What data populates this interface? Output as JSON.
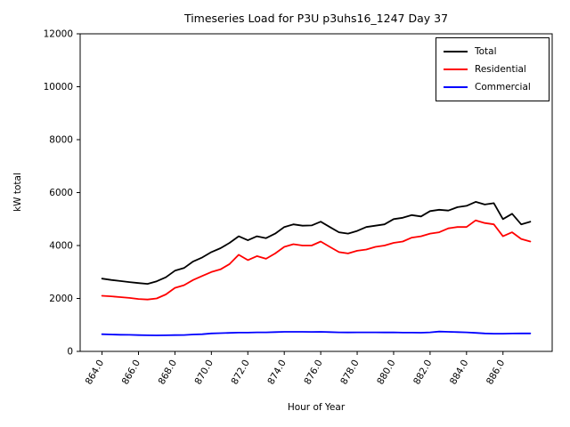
{
  "chart_data": {
    "type": "line",
    "title": "Timeseries Load for P3U p3uhs16_1247  Day 37",
    "xlabel": "Hour of Year",
    "ylabel": "kW total",
    "xlim": [
      862.8,
      888.7
    ],
    "ylim": [
      0,
      12000
    ],
    "yticks": [
      0,
      2000,
      4000,
      6000,
      8000,
      10000,
      12000
    ],
    "xticks": [
      864.0,
      866.0,
      868.0,
      870.0,
      872.0,
      874.0,
      876.0,
      878.0,
      880.0,
      882.0,
      884.0,
      886.0
    ],
    "grid": false,
    "legend_position": "upper right",
    "x": [
      864.0,
      864.5,
      865.0,
      865.5,
      866.0,
      866.5,
      867.0,
      867.5,
      868.0,
      868.5,
      869.0,
      869.5,
      870.0,
      870.5,
      871.0,
      871.5,
      872.0,
      872.5,
      873.0,
      873.5,
      874.0,
      874.5,
      875.0,
      875.5,
      876.0,
      876.5,
      877.0,
      877.5,
      878.0,
      878.5,
      879.0,
      879.5,
      880.0,
      880.5,
      881.0,
      881.5,
      882.0,
      882.5,
      883.0,
      883.5,
      884.0,
      884.5,
      885.0,
      885.5,
      886.0,
      886.5,
      887.0,
      887.5
    ],
    "series": [
      {
        "name": "Total",
        "color": "#000000",
        "values": [
          2750,
          2700,
          2660,
          2620,
          2580,
          2550,
          2650,
          2800,
          3050,
          3150,
          3400,
          3550,
          3750,
          3900,
          4100,
          4350,
          4200,
          4350,
          4280,
          4450,
          4700,
          4800,
          4750,
          4760,
          4900,
          4700,
          4500,
          4450,
          4550,
          4700,
          4750,
          4800,
          5000,
          5050,
          5150,
          5100,
          5300,
          5350,
          5320,
          5450,
          5500,
          5650,
          5550,
          5600,
          5000,
          5200,
          4800,
          4900
        ]
      },
      {
        "name": "Residential",
        "color": "#ff0000",
        "values": [
          2100,
          2080,
          2050,
          2020,
          1980,
          1960,
          2000,
          2150,
          2400,
          2500,
          2700,
          2850,
          3000,
          3100,
          3300,
          3650,
          3450,
          3600,
          3500,
          3700,
          3950,
          4050,
          4000,
          4000,
          4150,
          3950,
          3750,
          3700,
          3800,
          3850,
          3950,
          4000,
          4100,
          4150,
          4300,
          4350,
          4450,
          4500,
          4650,
          4700,
          4700,
          4950,
          4850,
          4800,
          4350,
          4500,
          4250,
          4150
        ]
      },
      {
        "name": "Commercial",
        "color": "#0000ff",
        "values": [
          650,
          640,
          630,
          625,
          615,
          610,
          605,
          610,
          615,
          620,
          640,
          650,
          680,
          690,
          700,
          710,
          710,
          720,
          720,
          730,
          740,
          740,
          740,
          735,
          740,
          730,
          720,
          715,
          720,
          720,
          720,
          715,
          720,
          710,
          710,
          705,
          720,
          750,
          740,
          730,
          720,
          700,
          680,
          670,
          670,
          675,
          680,
          680
        ]
      }
    ]
  }
}
